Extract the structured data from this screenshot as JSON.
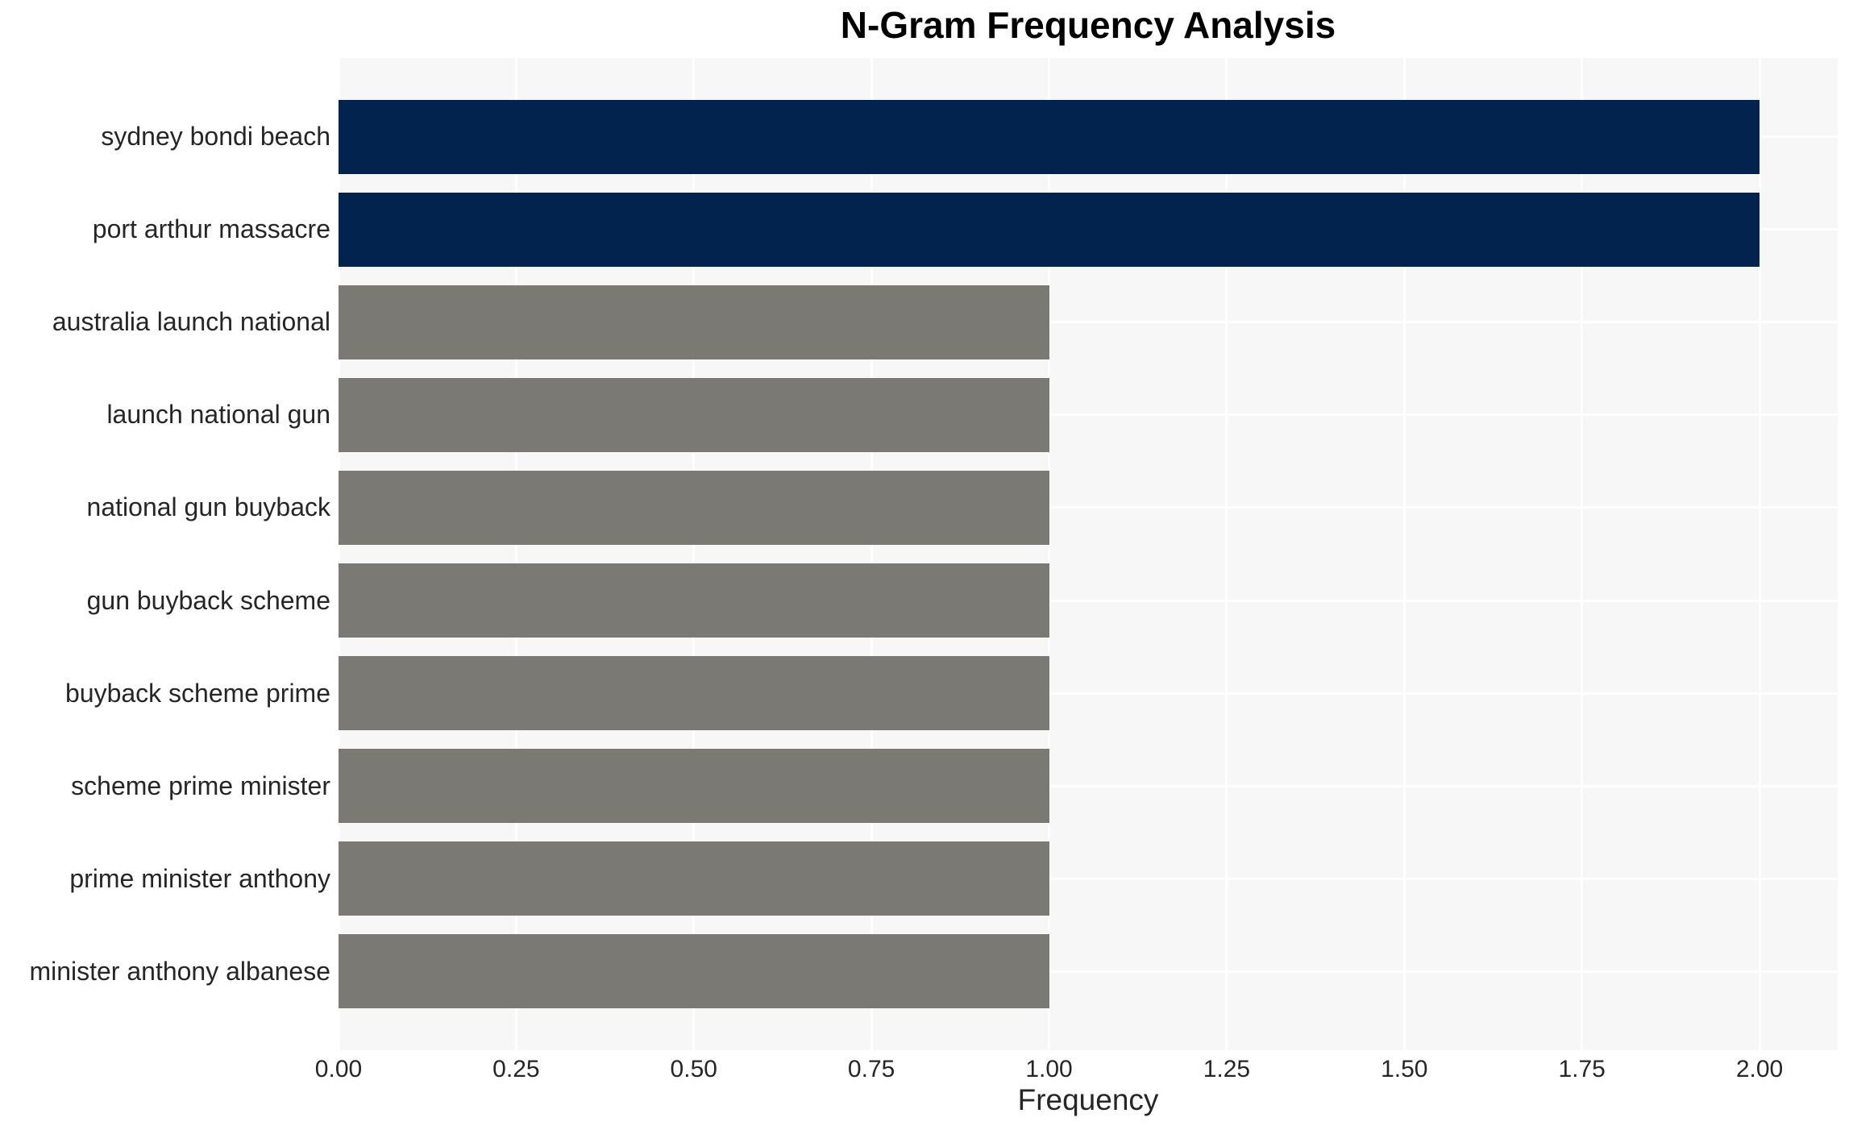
{
  "chart_data": {
    "type": "bar",
    "orientation": "horizontal",
    "title": "N-Gram Frequency Analysis",
    "xlabel": "Frequency",
    "ylabel": "",
    "categories": [
      "sydney bondi beach",
      "port arthur massacre",
      "australia launch national",
      "launch national gun",
      "national gun buyback",
      "gun buyback scheme",
      "buyback scheme prime",
      "scheme prime minister",
      "prime minister anthony",
      "minister anthony albanese"
    ],
    "values": [
      2,
      2,
      1,
      1,
      1,
      1,
      1,
      1,
      1,
      1
    ],
    "bar_colors": [
      "#02234d",
      "#02234d",
      "#7b7974",
      "#7b7974",
      "#7b7974",
      "#7b7974",
      "#7b7974",
      "#7b7974",
      "#7b7974",
      "#7b7974"
    ],
    "xlim": [
      0,
      2.11
    ],
    "xtick_labels": [
      "0.00",
      "0.25",
      "0.50",
      "0.75",
      "1.00",
      "1.25",
      "1.50",
      "1.75",
      "2.00"
    ],
    "xtick_values": [
      0,
      0.25,
      0.5,
      0.75,
      1.0,
      1.25,
      1.5,
      1.75,
      2.0
    ],
    "grid": true,
    "legend": "none",
    "colors": {
      "highlight_bar": "#02234d",
      "default_bar": "#7b7974",
      "plot_background": "#f7f7f8",
      "gridline": "#ffffff",
      "text": "#262626",
      "title_text": "#000000"
    }
  }
}
